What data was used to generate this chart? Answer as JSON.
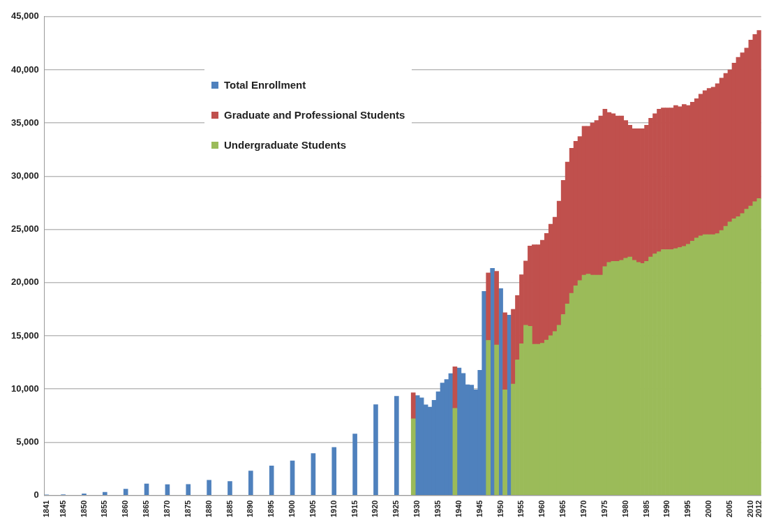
{
  "chart_data": {
    "type": "bar",
    "stacked": true,
    "legend": "top left",
    "grid": "y",
    "x": [
      1841,
      1845,
      1850,
      1855,
      1860,
      1865,
      1870,
      1875,
      1880,
      1885,
      1890,
      1895,
      1900,
      1905,
      1910,
      1915,
      1920,
      1925,
      1929,
      1930,
      1931,
      1932,
      1933,
      1934,
      1935,
      1936,
      1937,
      1938,
      1939,
      1940,
      1941,
      1942,
      1943,
      1944,
      1945,
      1946,
      1947,
      1948,
      1949,
      1950,
      1951,
      1952,
      1953,
      1954,
      1955,
      1956,
      1957,
      1958,
      1959,
      1960,
      1961,
      1962,
      1963,
      1964,
      1965,
      1966,
      1967,
      1968,
      1969,
      1970,
      1971,
      1972,
      1973,
      1974,
      1975,
      1976,
      1977,
      1978,
      1979,
      1980,
      1981,
      1982,
      1983,
      1984,
      1985,
      1986,
      1987,
      1988,
      1989,
      1990,
      1991,
      1992,
      1993,
      1994,
      1995,
      1996,
      1997,
      1998,
      1999,
      2000,
      2001,
      2002,
      2003,
      2004,
      2005,
      2006,
      2007,
      2008,
      2009,
      2010,
      2011,
      2012
    ],
    "xlim": [
      1840.5,
      2012.5
    ],
    "xticks": [
      1841,
      1845,
      1850,
      1855,
      1860,
      1865,
      1870,
      1875,
      1880,
      1885,
      1890,
      1895,
      1900,
      1905,
      1910,
      1915,
      1920,
      1925,
      1930,
      1935,
      1940,
      1945,
      1950,
      1955,
      1960,
      1965,
      1970,
      1975,
      1980,
      1985,
      1990,
      1995,
      2000,
      2005,
      2010,
      2012
    ],
    "ylim": [
      0,
      45000
    ],
    "yticks": [
      {
        "value": 0,
        "label": "0"
      },
      {
        "value": 5000,
        "label": "5,000"
      },
      {
        "value": 10000,
        "label": "10,000"
      },
      {
        "value": 15000,
        "label": "15,000"
      },
      {
        "value": 20000,
        "label": "20,000"
      },
      {
        "value": 25000,
        "label": "25,000"
      },
      {
        "value": 30000,
        "label": "30,000"
      },
      {
        "value": 35000,
        "label": "35,000"
      },
      {
        "value": 40000,
        "label": "40,000"
      },
      {
        "value": 45000,
        "label": "45,000"
      }
    ],
    "series": [
      {
        "name": "Undergraduate Students",
        "color": "#9bbb59",
        "values": [
          null,
          null,
          null,
          null,
          null,
          null,
          null,
          null,
          null,
          null,
          null,
          null,
          null,
          null,
          null,
          null,
          null,
          null,
          7200,
          null,
          null,
          null,
          null,
          null,
          null,
          null,
          null,
          null,
          8190,
          null,
          null,
          null,
          null,
          null,
          null,
          null,
          14570,
          null,
          14140,
          null,
          9920,
          null,
          10460,
          12730,
          14250,
          16000,
          15900,
          14200,
          14200,
          14300,
          14600,
          15000,
          15400,
          16000,
          17000,
          18000,
          19000,
          19700,
          20200,
          20700,
          20800,
          20700,
          20700,
          20700,
          21500,
          21900,
          22000,
          22000,
          22100,
          22300,
          22400,
          22100,
          21900,
          21800,
          22000,
          22400,
          22700,
          22900,
          23100,
          23100,
          23100,
          23200,
          23300,
          23400,
          23600,
          23900,
          24200,
          24400,
          24500,
          24500,
          24500,
          24600,
          24900,
          25300,
          25700,
          26000,
          26200,
          26500,
          26900,
          27200,
          27600,
          27900
        ]
      },
      {
        "name": "Graduate and Professional Students",
        "color": "#c0504d",
        "values": [
          null,
          null,
          null,
          null,
          null,
          null,
          null,
          null,
          null,
          null,
          null,
          null,
          null,
          null,
          null,
          null,
          null,
          null,
          2450,
          null,
          null,
          null,
          null,
          null,
          null,
          null,
          null,
          null,
          3890,
          null,
          null,
          null,
          null,
          null,
          null,
          null,
          6340,
          null,
          6920,
          null,
          7250,
          null,
          7030,
          6060,
          6490,
          6030,
          7540,
          9350,
          9350,
          9680,
          10030,
          10490,
          10740,
          11660,
          12610,
          13330,
          13630,
          13580,
          13520,
          13990,
          13890,
          14310,
          14530,
          14960,
          14810,
          14090,
          13880,
          13660,
          13560,
          12930,
          12400,
          12370,
          12570,
          12670,
          12800,
          13050,
          13180,
          13410,
          13320,
          13320,
          13320,
          13440,
          13230,
          13350,
          13040,
          13060,
          13090,
          13320,
          13540,
          13760,
          13870,
          14090,
          14330,
          14370,
          14290,
          14640,
          14980,
          15110,
          15140,
          15600,
          15720,
          15810
        ]
      },
      {
        "name": "Total Enrollment",
        "color": "#4f81bd",
        "values": [
          50,
          70,
          140,
          300,
          590,
          1080,
          1010,
          1030,
          1430,
          1310,
          2300,
          2770,
          3240,
          3940,
          4510,
          5770,
          8520,
          9310,
          null,
          9380,
          9160,
          8510,
          8290,
          8940,
          9750,
          10570,
          10890,
          11440,
          null,
          11970,
          11470,
          10400,
          10360,
          9920,
          11760,
          19180,
          null,
          21340,
          null,
          19440,
          null,
          16950,
          null,
          null,
          null,
          null,
          null,
          null,
          null,
          null,
          null,
          null,
          null,
          null,
          null,
          null,
          null,
          null,
          null,
          null,
          null,
          null,
          null,
          null,
          null,
          null,
          null,
          null,
          null,
          null,
          null,
          null,
          null,
          null,
          null,
          null,
          null,
          null,
          null,
          null,
          null,
          null,
          null,
          null,
          null,
          null,
          null,
          null,
          null,
          null,
          null,
          null,
          null,
          null,
          null,
          null,
          null,
          null,
          null,
          null,
          null,
          null
        ]
      }
    ]
  }
}
